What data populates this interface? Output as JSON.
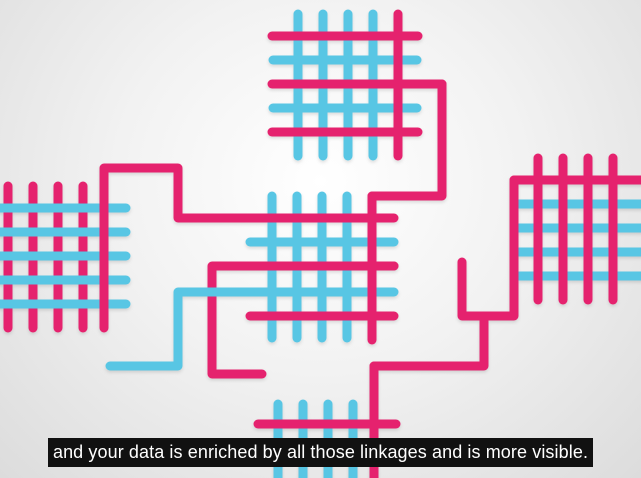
{
  "video": {
    "caption": "and your data is enriched by all those linkages and is more visible."
  },
  "colors": {
    "pink": "#e5236e",
    "blue": "#58c6e4"
  }
}
